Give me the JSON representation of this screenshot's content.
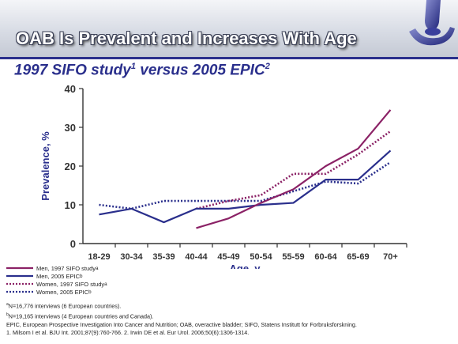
{
  "header": {
    "title": "OAB Is Prevalent and Increases With Age",
    "subtitle_main": "1997 SIFO study",
    "subtitle_sup1": "1",
    "subtitle_mid": " versus 2005 EPIC",
    "subtitle_sup2": "2"
  },
  "legend": {
    "items": [
      {
        "label": "Men, 1997 SIFO study",
        "sup": "a"
      },
      {
        "label": "Men, 2005 EPIC",
        "sup": "b"
      },
      {
        "label": "Women, 1997 SIFO study",
        "sup": "a"
      },
      {
        "label": "Women, 2005 EPIC",
        "sup": "b"
      }
    ]
  },
  "footnotes": {
    "a_sup": "a",
    "a": "N=16,776 interviews (6 European countries).",
    "b_sup": "b",
    "b": "N=19,165 interviews (4 European countries and Canada).",
    "abbrev": "EPIC, European Prospective Investigation Into Cancer and Nutrition; OAB, overactive bladder; SIFO, Statens Institutt for Forbruksforskning.",
    "refs": "1. Milsom I et al. BJU Int. 2001;87(9):760-766. 2. Irwin DE et al. Eur Urol. 2006;50(6):1306-1314."
  },
  "colors": {
    "men_1997": "#8b2266",
    "men_2005": "#2a2f8c",
    "women_1997": "#8b2266",
    "women_2005": "#2a2f8c",
    "title_blue": "#2a2f8c"
  },
  "chart_data": {
    "type": "line",
    "xlabel": "Age, y",
    "ylabel": "Prevalence, %",
    "ylim": [
      0,
      40
    ],
    "yticks": [
      0,
      10,
      20,
      30,
      40
    ],
    "categories": [
      "18-29",
      "30-34",
      "35-39",
      "40-44",
      "45-49",
      "50-54",
      "55-59",
      "60-64",
      "65-69",
      "70+"
    ],
    "series": [
      {
        "name": "Men, 1997 SIFO study",
        "style": "solid",
        "values": [
          null,
          null,
          null,
          4,
          6.5,
          10.5,
          14,
          20,
          24.5,
          34.5
        ]
      },
      {
        "name": "Men, 2005 EPIC",
        "style": "solid",
        "values": [
          7.5,
          9,
          5.5,
          9,
          9,
          10,
          10.5,
          16.5,
          16.5,
          24
        ]
      },
      {
        "name": "Women, 1997 SIFO study",
        "style": "dotted",
        "values": [
          null,
          null,
          null,
          9,
          11,
          12.5,
          18,
          18,
          23,
          29
        ]
      },
      {
        "name": "Women, 2005 EPIC",
        "style": "dotted",
        "values": [
          10,
          9,
          11,
          11,
          11,
          11,
          13.5,
          16,
          15.5,
          21
        ]
      }
    ]
  }
}
